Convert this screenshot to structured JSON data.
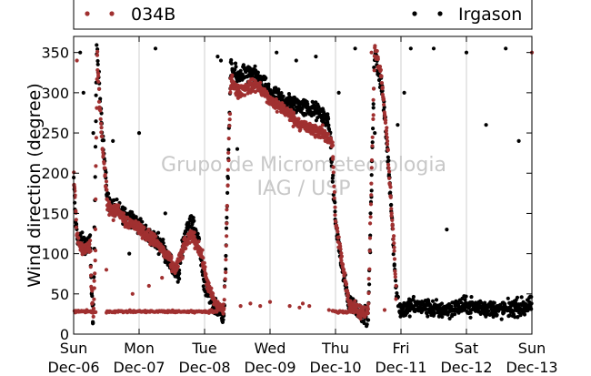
{
  "chart_data": {
    "type": "scatter",
    "ylabel": "Wind direction (degree)",
    "ylim": [
      0,
      370
    ],
    "yticks": [
      0,
      50,
      100,
      150,
      200,
      250,
      300,
      350
    ],
    "xlim": [
      0,
      7
    ],
    "xticks": [
      {
        "day": "Sun",
        "date": "Dec-06"
      },
      {
        "day": "Mon",
        "date": "Dec-07"
      },
      {
        "day": "Tue",
        "date": "Dec-08"
      },
      {
        "day": "Wed",
        "date": "Dec-09"
      },
      {
        "day": "Thu",
        "date": "Dec-10"
      },
      {
        "day": "Fri",
        "date": "Dec-11"
      },
      {
        "day": "Sat",
        "date": "Dec-12"
      },
      {
        "day": "Sun",
        "date": "Dec-13"
      }
    ],
    "grid": "vertical",
    "legend_placement": "top",
    "watermark": [
      "Grupo de Micrometeorologia",
      "IAG / USP"
    ],
    "series": [
      {
        "name": "034B",
        "color": "#a03030",
        "trace": [
          [
            0.0,
            195
          ],
          [
            0.03,
            160
          ],
          [
            0.05,
            120
          ],
          [
            0.1,
            110
          ],
          [
            0.18,
            105
          ],
          [
            0.25,
            110
          ],
          [
            0.27,
            60
          ],
          [
            0.3,
            20
          ],
          [
            0.33,
            100
          ],
          [
            0.36,
            350
          ],
          [
            0.4,
            280
          ],
          [
            0.44,
            240
          ],
          [
            0.48,
            200
          ],
          [
            0.52,
            160
          ],
          [
            0.6,
            150
          ],
          [
            0.68,
            155
          ],
          [
            0.8,
            140
          ],
          [
            0.95,
            135
          ],
          [
            1.1,
            125
          ],
          [
            1.25,
            115
          ],
          [
            1.4,
            100
          ],
          [
            1.55,
            80
          ],
          [
            1.7,
            110
          ],
          [
            1.8,
            125
          ],
          [
            1.95,
            100
          ],
          [
            2.05,
            60
          ],
          [
            2.15,
            40
          ],
          [
            2.3,
            30
          ],
          [
            2.4,
            320
          ],
          [
            2.5,
            300
          ],
          [
            2.6,
            305
          ],
          [
            2.8,
            310
          ],
          [
            3.0,
            290
          ],
          [
            3.2,
            280
          ],
          [
            3.4,
            265
          ],
          [
            3.6,
            255
          ],
          [
            3.8,
            250
          ],
          [
            3.95,
            240
          ],
          [
            4.0,
            140
          ],
          [
            4.1,
            90
          ],
          [
            4.2,
            40
          ],
          [
            4.35,
            30
          ],
          [
            4.5,
            25
          ],
          [
            4.6,
            355
          ],
          [
            4.7,
            320
          ],
          [
            4.8,
            230
          ],
          [
            4.85,
            160
          ],
          [
            4.9,
            100
          ],
          [
            4.93,
            40
          ]
        ],
        "trace_spread": 12,
        "baseline_value": 28,
        "baseline_ranges": [
          [
            0.0,
            0.35
          ],
          [
            0.5,
            2.2
          ],
          [
            3.95,
            4.3
          ]
        ],
        "extra_points": [
          [
            0.05,
            340
          ],
          [
            0.2,
            30
          ],
          [
            0.5,
            80
          ],
          [
            0.9,
            50
          ],
          [
            1.15,
            60
          ],
          [
            1.35,
            70
          ],
          [
            1.7,
            120
          ],
          [
            2.1,
            30
          ],
          [
            2.55,
            35
          ],
          [
            2.7,
            38
          ],
          [
            2.85,
            35
          ],
          [
            3.0,
            40
          ],
          [
            3.3,
            35
          ],
          [
            3.45,
            33
          ],
          [
            3.5,
            38
          ],
          [
            3.6,
            35
          ],
          [
            3.9,
            30
          ],
          [
            4.55,
            350
          ],
          [
            4.75,
            30
          ],
          [
            7.0,
            350
          ]
        ]
      },
      {
        "name": "Irgason",
        "color": "#000000",
        "trace": [
          [
            0.0,
            190
          ],
          [
            0.03,
            140
          ],
          [
            0.06,
            120
          ],
          [
            0.12,
            115
          ],
          [
            0.2,
            110
          ],
          [
            0.25,
            115
          ],
          [
            0.27,
            60
          ],
          [
            0.3,
            10
          ],
          [
            0.35,
            355
          ],
          [
            0.4,
            300
          ],
          [
            0.45,
            240
          ],
          [
            0.5,
            180
          ],
          [
            0.55,
            160
          ],
          [
            0.65,
            155
          ],
          [
            0.75,
            150
          ],
          [
            0.9,
            145
          ],
          [
            1.05,
            130
          ],
          [
            1.2,
            120
          ],
          [
            1.35,
            110
          ],
          [
            1.5,
            85
          ],
          [
            1.6,
            70
          ],
          [
            1.68,
            120
          ],
          [
            1.78,
            140
          ],
          [
            1.9,
            120
          ],
          [
            2.0,
            60
          ],
          [
            2.1,
            40
          ],
          [
            2.2,
            30
          ],
          [
            2.3,
            25
          ],
          [
            2.4,
            330
          ],
          [
            2.5,
            320
          ],
          [
            2.6,
            325
          ],
          [
            2.8,
            320
          ],
          [
            3.0,
            300
          ],
          [
            3.2,
            290
          ],
          [
            3.4,
            285
          ],
          [
            3.6,
            280
          ],
          [
            3.75,
            275
          ],
          [
            3.9,
            265
          ],
          [
            4.0,
            140
          ],
          [
            4.1,
            80
          ],
          [
            4.2,
            40
          ],
          [
            4.35,
            30
          ],
          [
            4.5,
            20
          ],
          [
            4.6,
            350
          ],
          [
            4.72,
            300
          ],
          [
            4.8,
            220
          ],
          [
            4.86,
            150
          ],
          [
            4.92,
            60
          ],
          [
            4.98,
            30
          ],
          [
            5.2,
            35
          ],
          [
            5.6,
            30
          ],
          [
            6.0,
            35
          ],
          [
            6.5,
            30
          ],
          [
            7.0,
            35
          ]
        ],
        "trace_spread": 16,
        "baseline_value": 30,
        "baseline_ranges": [],
        "extra_points": [
          [
            0.1,
            350
          ],
          [
            0.15,
            300
          ],
          [
            0.3,
            250
          ],
          [
            0.6,
            240
          ],
          [
            0.85,
            100
          ],
          [
            1.0,
            250
          ],
          [
            1.25,
            355
          ],
          [
            1.4,
            150
          ],
          [
            2.2,
            345
          ],
          [
            2.25,
            340
          ],
          [
            2.5,
            230
          ],
          [
            2.65,
            320
          ],
          [
            3.1,
            350
          ],
          [
            3.4,
            340
          ],
          [
            3.7,
            345
          ],
          [
            4.05,
            300
          ],
          [
            4.3,
            355
          ],
          [
            4.6,
            250
          ],
          [
            4.95,
            260
          ],
          [
            5.05,
            300
          ],
          [
            5.15,
            355
          ],
          [
            5.5,
            355
          ],
          [
            5.7,
            130
          ],
          [
            6.0,
            350
          ],
          [
            6.3,
            260
          ],
          [
            6.6,
            355
          ],
          [
            6.8,
            240
          ]
        ]
      }
    ]
  }
}
